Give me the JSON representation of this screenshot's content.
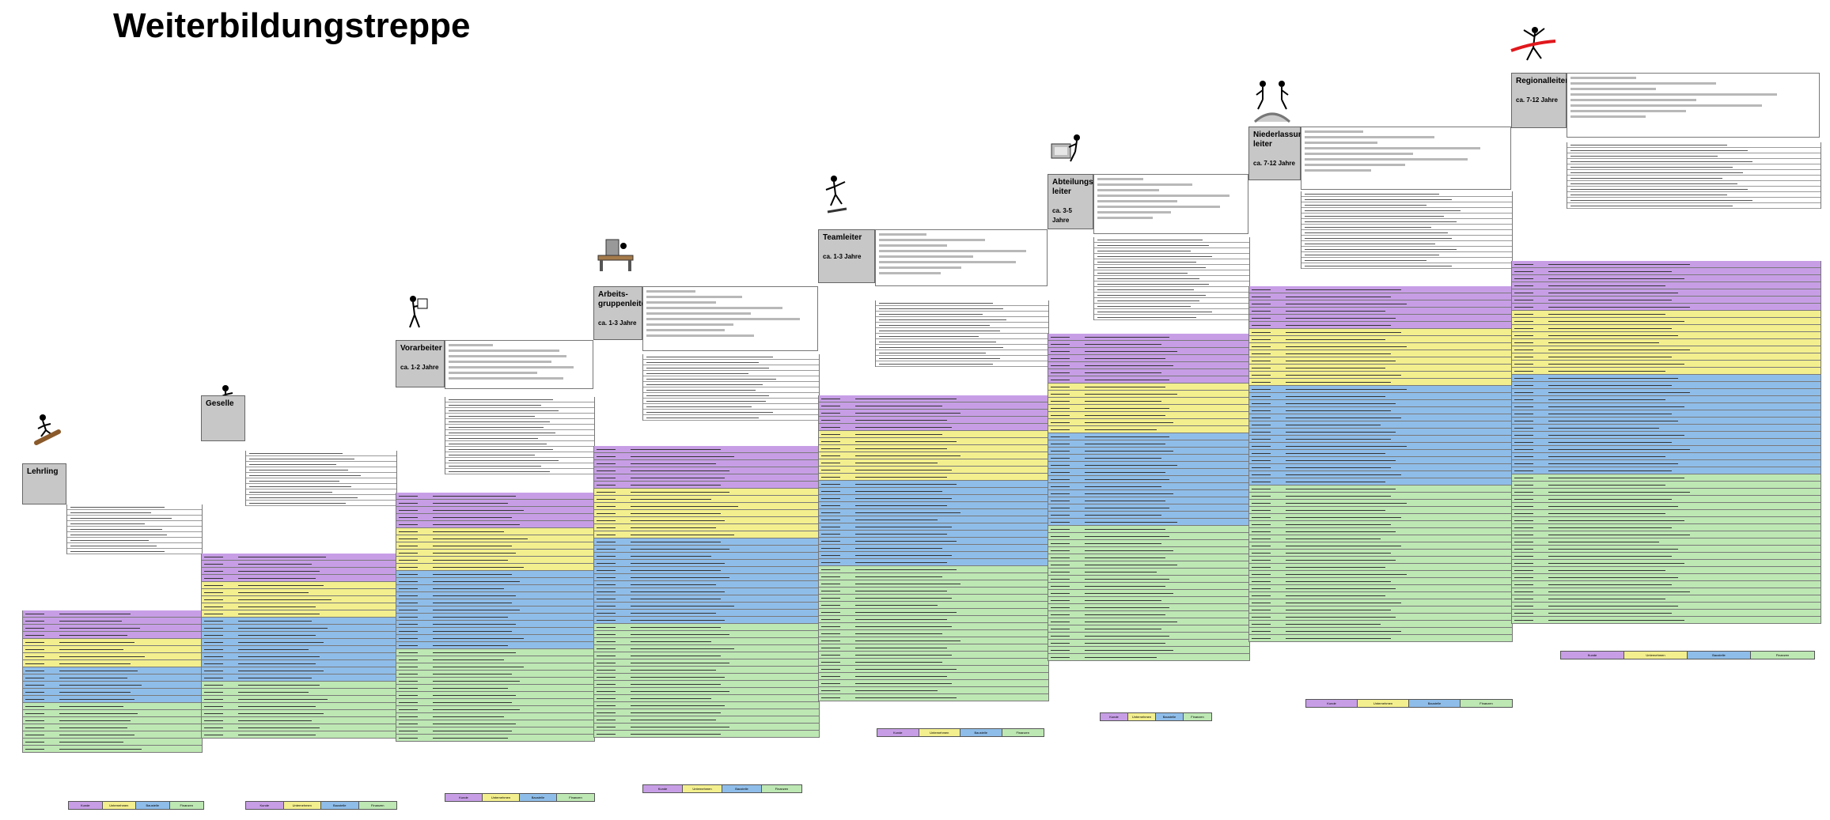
{
  "title": "Weiterbildungstreppe",
  "steps": [
    {
      "name": "Lehrling",
      "period": ""
    },
    {
      "name": "Geselle",
      "period": ""
    },
    {
      "name": "Vorarbeiter",
      "period": "ca. 1-2 Jahre"
    },
    {
      "name": "Arbeits-gruppenleiter",
      "period": "ca. 1-3 Jahre"
    },
    {
      "name": "Teamleiter",
      "period": "ca. 1-3 Jahre"
    },
    {
      "name": "Abteilungs-leiter",
      "period": "ca. 3-5 Jahre"
    },
    {
      "name": "Niederlassungs-leiter",
      "period": "ca. 7-12 Jahre"
    },
    {
      "name": "Regionalleiter",
      "period": "ca. 7-12 Jahre"
    }
  ],
  "legend": [
    "Kunde",
    "Unternehmen",
    "Baustelle",
    "Finanzen"
  ],
  "colors": {
    "kunde": "#c79ee6",
    "unternehmen": "#f3ef8e",
    "baustelle": "#8fbde9",
    "finanzen": "#bde7b3",
    "header": "#c7c7c7"
  },
  "icons": [
    "skateboarder-figure",
    "stick-figure",
    "figure-with-sign",
    "desk-figure",
    "flying-figure",
    "computer-figure",
    "twin-figures",
    "finish-line-figure"
  ]
}
